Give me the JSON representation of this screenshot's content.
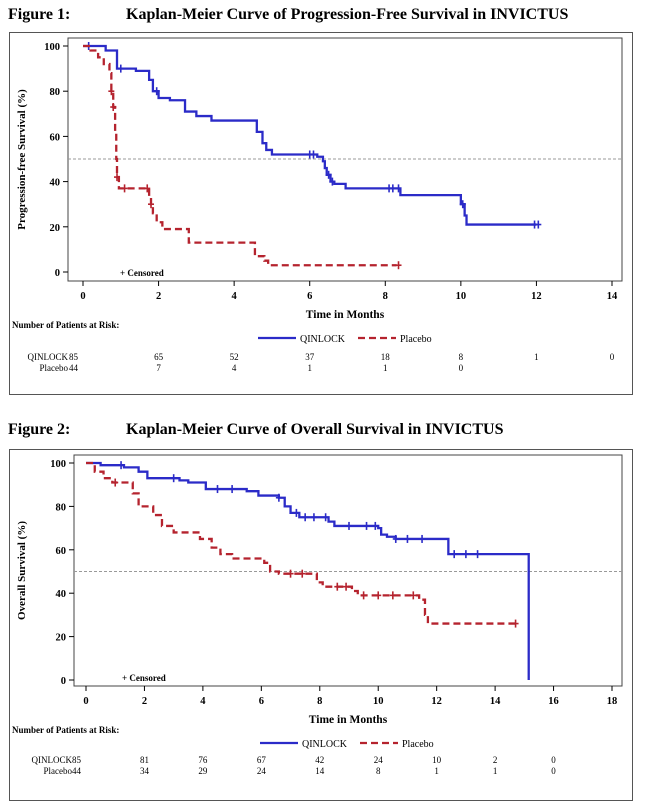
{
  "colors": {
    "qinlock": "#2b2bc8",
    "placebo": "#b5232e",
    "reference": "#999999"
  },
  "fig1": {
    "figure_label": "Figure 1:",
    "title": "Kaplan-Meier Curve of Progression-Free Survival in INVICTUS"
  },
  "fig2": {
    "figure_label": "Figure 2:",
    "title": "Kaplan-Meier Curve of Overall Survival in INVICTUS"
  },
  "chart_data": [
    {
      "type": "line",
      "title": "Kaplan-Meier Curve of Progression-Free Survival in INVICTUS",
      "xlabel": "Time in Months",
      "ylabel": "Progression-free Survival (%)",
      "xlim": [
        0,
        14
      ],
      "ylim": [
        0,
        100
      ],
      "xticks": [
        "0",
        "2",
        "4",
        "6",
        "8",
        "10",
        "12",
        "14"
      ],
      "yticks": [
        "0",
        "20",
        "40",
        "60",
        "80",
        "100"
      ],
      "reference_line_y": 50,
      "censored_note": "+ Censored",
      "risk_table_title": "Number of Patients at Risk:",
      "series": [
        {
          "name": "QINLOCK",
          "steps": [
            [
              0,
              100
            ],
            [
              0.6,
              98
            ],
            [
              0.9,
              90
            ],
            [
              1.4,
              89
            ],
            [
              1.75,
              85
            ],
            [
              1.85,
              80
            ],
            [
              2.0,
              77
            ],
            [
              2.3,
              76
            ],
            [
              2.7,
              71
            ],
            [
              3.0,
              69
            ],
            [
              3.4,
              67
            ],
            [
              4.3,
              67
            ],
            [
              4.6,
              62
            ],
            [
              4.75,
              57
            ],
            [
              4.85,
              54
            ],
            [
              5.0,
              52
            ],
            [
              6.1,
              52
            ],
            [
              6.2,
              51
            ],
            [
              6.35,
              49
            ],
            [
              6.4,
              46
            ],
            [
              6.45,
              43
            ],
            [
              6.55,
              40
            ],
            [
              6.65,
              39
            ],
            [
              6.95,
              37
            ],
            [
              8.3,
              37
            ],
            [
              8.4,
              34
            ],
            [
              9.95,
              34
            ],
            [
              10.0,
              30
            ],
            [
              10.1,
              25
            ],
            [
              10.15,
              21
            ],
            [
              12.0,
              21
            ]
          ],
          "censor_x": [
            0.15,
            1.0,
            1.95,
            6.0,
            6.1,
            6.5,
            6.6,
            8.1,
            8.2,
            8.35,
            10.05,
            11.95,
            12.05
          ]
        },
        {
          "name": "Placebo",
          "steps": [
            [
              0,
              100
            ],
            [
              0.2,
              98
            ],
            [
              0.4,
              95
            ],
            [
              0.55,
              92
            ],
            [
              0.7,
              88
            ],
            [
              0.75,
              80
            ],
            [
              0.8,
              73
            ],
            [
              0.85,
              62
            ],
            [
              0.88,
              50
            ],
            [
              0.9,
              42
            ],
            [
              0.95,
              37
            ],
            [
              1.7,
              37
            ],
            [
              1.75,
              33
            ],
            [
              1.8,
              30
            ],
            [
              1.85,
              26
            ],
            [
              1.95,
              22
            ],
            [
              2.1,
              19
            ],
            [
              2.75,
              19
            ],
            [
              2.8,
              13
            ],
            [
              4.5,
              13
            ],
            [
              4.55,
              7
            ],
            [
              4.8,
              5
            ],
            [
              4.9,
              3
            ],
            [
              8.3,
              3
            ]
          ],
          "censor_x": [
            0.75,
            0.8,
            0.9,
            1.1,
            1.7,
            1.8,
            8.35
          ]
        }
      ],
      "risk_table": {
        "x": [
          "0",
          "2",
          "4",
          "6",
          "8",
          "10",
          "12",
          "14"
        ],
        "rows": [
          {
            "name": "QINLOCK",
            "values": [
              "85",
              "65",
              "52",
              "37",
              "18",
              "8",
              "1",
              "0"
            ]
          },
          {
            "name": "Placebo",
            "values": [
              "44",
              "7",
              "4",
              "1",
              "1",
              "0",
              "",
              ""
            ]
          }
        ]
      }
    },
    {
      "type": "line",
      "title": "Kaplan-Meier Curve of Overall Survival in INVICTUS",
      "xlabel": "Time in Months",
      "ylabel": "Overall Survival (%)",
      "xlim": [
        0,
        18
      ],
      "ylim": [
        0,
        100
      ],
      "xticks": [
        "0",
        "2",
        "4",
        "6",
        "8",
        "10",
        "12",
        "14",
        "16",
        "18"
      ],
      "yticks": [
        "0",
        "20",
        "40",
        "60",
        "80",
        "100"
      ],
      "reference_line_y": 50,
      "censored_note": "+ Censored",
      "risk_table_title": "Number of Patients at Risk:",
      "series": [
        {
          "name": "QINLOCK",
          "steps": [
            [
              0,
              100
            ],
            [
              0.5,
              99
            ],
            [
              1.3,
              98
            ],
            [
              1.8,
              96
            ],
            [
              2.1,
              93
            ],
            [
              3.2,
              92
            ],
            [
              3.5,
              91
            ],
            [
              4.1,
              88
            ],
            [
              4.5,
              88
            ],
            [
              5.5,
              87
            ],
            [
              5.9,
              85
            ],
            [
              6.6,
              84
            ],
            [
              6.8,
              80
            ],
            [
              7.0,
              77
            ],
            [
              7.3,
              75
            ],
            [
              8.3,
              73
            ],
            [
              8.5,
              71
            ],
            [
              10.0,
              70
            ],
            [
              10.1,
              67
            ],
            [
              10.3,
              66
            ],
            [
              10.6,
              65
            ],
            [
              12.3,
              65
            ],
            [
              12.4,
              58
            ],
            [
              15.1,
              58
            ],
            [
              15.15,
              0
            ]
          ],
          "censor_x": [
            1.2,
            3.0,
            4.5,
            5.0,
            6.6,
            7.2,
            7.5,
            7.8,
            8.2,
            9.0,
            9.6,
            9.9,
            10.6,
            11.0,
            11.5,
            12.6,
            13.0,
            13.4
          ]
        },
        {
          "name": "Placebo",
          "steps": [
            [
              0,
              100
            ],
            [
              0.3,
              96
            ],
            [
              0.6,
              93
            ],
            [
              0.9,
              91
            ],
            [
              1.6,
              86
            ],
            [
              1.8,
              80
            ],
            [
              2.3,
              76
            ],
            [
              2.6,
              71
            ],
            [
              3.0,
              68
            ],
            [
              3.9,
              65
            ],
            [
              4.3,
              61
            ],
            [
              4.6,
              58
            ],
            [
              5.0,
              56
            ],
            [
              6.1,
              54
            ],
            [
              6.3,
              50
            ],
            [
              6.6,
              49
            ],
            [
              7.8,
              49
            ],
            [
              7.9,
              45
            ],
            [
              8.1,
              43
            ],
            [
              9.1,
              41
            ],
            [
              9.3,
              39
            ],
            [
              11.4,
              37
            ],
            [
              11.6,
              30
            ],
            [
              11.7,
              26
            ],
            [
              14.8,
              26
            ]
          ],
          "censor_x": [
            1.0,
            7.0,
            7.4,
            8.6,
            8.9,
            9.5,
            10.0,
            10.5,
            11.2,
            14.7
          ]
        }
      ],
      "risk_table": {
        "x": [
          "0",
          "2",
          "4",
          "6",
          "8",
          "10",
          "12",
          "14",
          "16"
        ],
        "rows": [
          {
            "name": "QINLOCK",
            "values": [
              "85",
              "81",
              "76",
              "67",
              "42",
              "24",
              "10",
              "2",
              "0"
            ]
          },
          {
            "name": "Placebo",
            "values": [
              "44",
              "34",
              "29",
              "24",
              "14",
              "8",
              "1",
              "1",
              "0"
            ]
          }
        ]
      }
    }
  ]
}
